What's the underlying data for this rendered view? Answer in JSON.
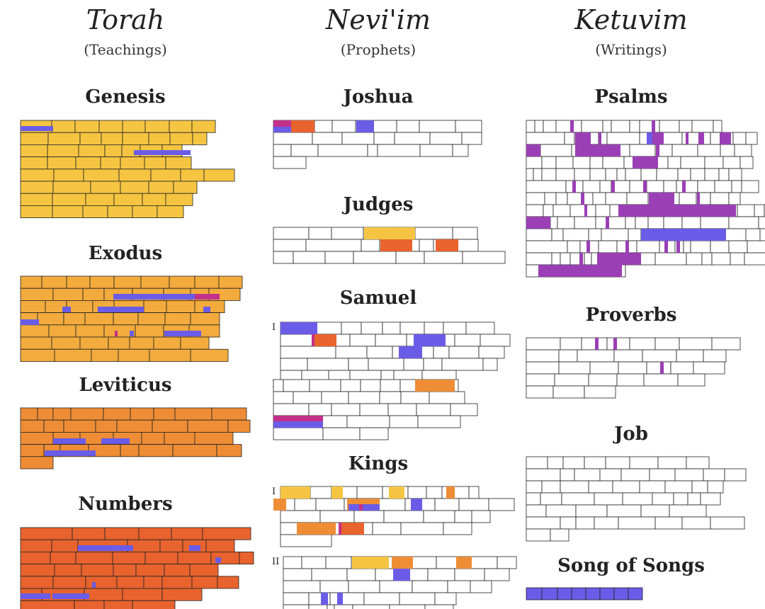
{
  "divisions": [
    {
      "name": "Torah",
      "subtitle": "(Teachings)"
    },
    {
      "name": "Nevi'im",
      "subtitle": "(Prophets)"
    },
    {
      "name": "Ketuvim",
      "subtitle": "(Writings)"
    }
  ],
  "books": {
    "genesis": "Genesis",
    "exodus": "Exodus",
    "leviticus": "Leviticus",
    "numbers": "Numbers",
    "joshua": "Joshua",
    "judges": "Judges",
    "samuel": "Samuel",
    "kings": "Kings",
    "psalms": "Psalms",
    "proverbs": "Proverbs",
    "job": "Job",
    "song": "Song of Songs"
  },
  "part_labels": {
    "first": "I",
    "second": "II"
  },
  "colors": {
    "yellow": "#f5c542",
    "light_orange": "#f2ab3c",
    "orange": "#ee8d35",
    "red_orange": "#e8632e",
    "blue": "#6b5ce7",
    "purple": "#9a3fb5",
    "magenta": "#c2318a",
    "outline": "#222222"
  }
}
